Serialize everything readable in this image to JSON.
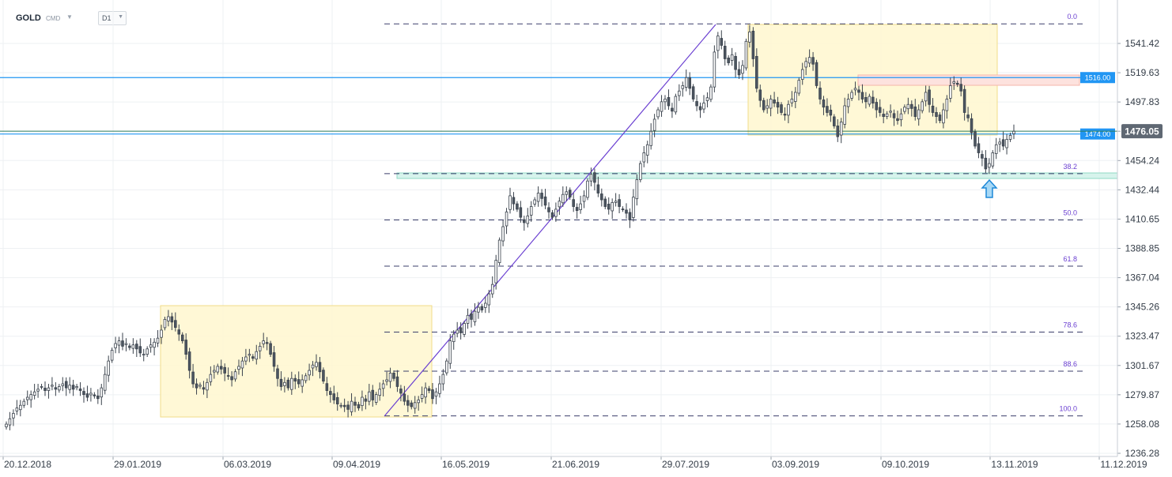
{
  "toolbar": {
    "symbol": "GOLD",
    "source": "CMD",
    "timeframe": "D1"
  },
  "chart_data": {
    "type": "candlestick",
    "instrument": "GOLD",
    "timeframe": "D1",
    "x_ticks": [
      "20.12.2018",
      "29.01.2019",
      "06.03.2019",
      "09.04.2019",
      "16.05.2019",
      "21.06.2019",
      "29.07.2019",
      "03.09.2019",
      "09.10.2019",
      "13.11.2019",
      "11.12.2019"
    ],
    "y_ticks": [
      1541.42,
      1519.63,
      1497.83,
      1476.05,
      1454.24,
      1432.44,
      1410.65,
      1388.85,
      1367.04,
      1345.26,
      1323.47,
      1301.67,
      1279.87,
      1258.08,
      1236.28
    ],
    "ylim": [
      1236.28,
      1563.2
    ],
    "current_price": 1476.05,
    "horizontal_levels": [
      {
        "label": "1516.00",
        "value": 1516.0,
        "color": "#2196f3"
      },
      {
        "label": "1474.00",
        "value": 1474.0,
        "color": "#2196f3"
      }
    ],
    "fibonacci_levels": [
      {
        "label": "0.0",
        "value": 1556.0
      },
      {
        "label": "38.2",
        "value": 1444.5
      },
      {
        "label": "50.0",
        "value": 1410.0
      },
      {
        "label": "61.8",
        "value": 1375.6
      },
      {
        "label": "78.6",
        "value": 1326.5
      },
      {
        "label": "88.6",
        "value": 1297.4
      },
      {
        "label": "100.0",
        "value": 1264.1
      }
    ],
    "candles_close": [
      1258,
      1262,
      1266,
      1270,
      1272,
      1275,
      1278,
      1280,
      1282,
      1284,
      1286,
      1283,
      1285,
      1287,
      1284,
      1286,
      1288,
      1285,
      1287,
      1284,
      1286,
      1283,
      1280,
      1278,
      1281,
      1279,
      1277,
      1285,
      1295,
      1305,
      1313,
      1318,
      1320,
      1316,
      1318,
      1315,
      1317,
      1314,
      1311,
      1310,
      1314,
      1317,
      1319,
      1322,
      1328,
      1336,
      1338,
      1334,
      1330,
      1325,
      1320,
      1310,
      1298,
      1288,
      1285,
      1287,
      1284,
      1289,
      1295,
      1298,
      1301,
      1299,
      1296,
      1294,
      1291,
      1297,
      1301,
      1305,
      1308,
      1310,
      1307,
      1312,
      1316,
      1320,
      1318,
      1310,
      1301,
      1292,
      1286,
      1289,
      1285,
      1292,
      1290,
      1288,
      1291,
      1294,
      1298,
      1302,
      1304,
      1297,
      1290,
      1283,
      1280,
      1276,
      1273,
      1272,
      1271,
      1269,
      1275,
      1272,
      1270,
      1278,
      1275,
      1282,
      1276,
      1280,
      1284,
      1288,
      1291,
      1296,
      1292,
      1286,
      1281,
      1275,
      1272,
      1271,
      1274,
      1276,
      1280,
      1285,
      1283,
      1277,
      1282,
      1288,
      1295,
      1305,
      1320,
      1325,
      1328,
      1326,
      1333,
      1339,
      1336,
      1342,
      1345,
      1343,
      1348,
      1355,
      1362,
      1380,
      1395,
      1405,
      1416,
      1428,
      1422,
      1418,
      1412,
      1408,
      1413,
      1420,
      1425,
      1430,
      1426,
      1421,
      1416,
      1412,
      1418,
      1424,
      1429,
      1431,
      1427,
      1420,
      1417,
      1422,
      1428,
      1439,
      1444,
      1438,
      1430,
      1425,
      1420,
      1418,
      1423,
      1424,
      1420,
      1418,
      1415,
      1410,
      1427,
      1440,
      1452,
      1460,
      1466,
      1476,
      1485,
      1492,
      1498,
      1500,
      1495,
      1491,
      1502,
      1506,
      1510,
      1516,
      1508,
      1500,
      1495,
      1492,
      1497,
      1501,
      1509,
      1535,
      1547,
      1540,
      1530,
      1527,
      1533,
      1522,
      1518,
      1525,
      1543,
      1550,
      1530,
      1508,
      1499,
      1492,
      1495,
      1500,
      1497,
      1494,
      1490,
      1488,
      1496,
      1500,
      1505,
      1514,
      1522,
      1528,
      1531,
      1526,
      1510,
      1500,
      1494,
      1490,
      1488,
      1480,
      1472,
      1483,
      1495,
      1500,
      1505,
      1508,
      1505,
      1500,
      1498,
      1502,
      1497,
      1492,
      1490,
      1487,
      1489,
      1491,
      1486,
      1484,
      1489,
      1494,
      1496,
      1493,
      1487,
      1492,
      1498,
      1505,
      1496,
      1490,
      1487,
      1484,
      1492,
      1500,
      1510,
      1513,
      1511,
      1506,
      1490,
      1486,
      1475,
      1465,
      1460,
      1456,
      1448,
      1452,
      1460,
      1466,
      1468,
      1465,
      1470,
      1473,
      1476
    ]
  }
}
